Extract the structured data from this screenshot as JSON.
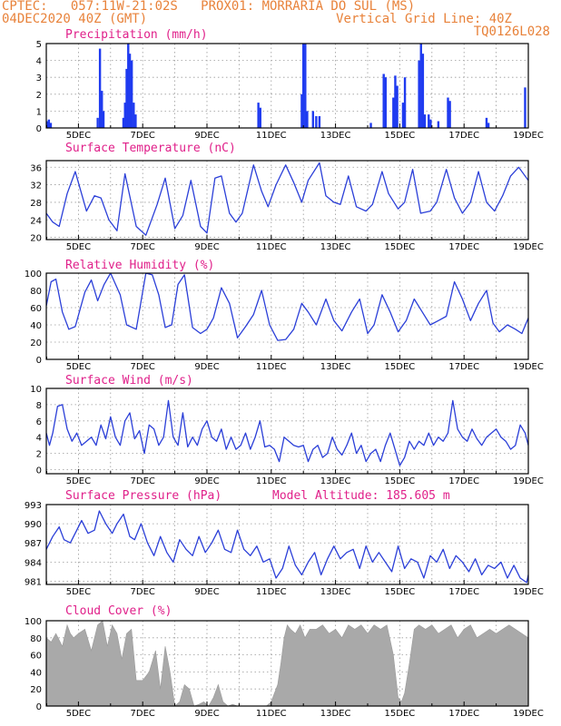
{
  "header": {
    "line1": "CPTEC:   057:11W-21:02S   PROX01: MORRARIA DO SUL (MS)",
    "line2": "04DEC2020 40Z (GMT)",
    "grid_note": "Vertical Grid Line: 40Z",
    "code": "TQ0126L028"
  },
  "colors": {
    "header": "#e8823a",
    "title": "#e0208a",
    "line": "#2b3fd8",
    "bar": "#1f3bf0",
    "cloud": "#a9a9a9"
  },
  "x_ticks": [
    "5DEC",
    "7DEC",
    "9DEC",
    "11DEC",
    "13DEC",
    "15DEC",
    "17DEC",
    "19DEC"
  ],
  "chart_data": [
    {
      "type": "bar",
      "title": "Precipitation  (mm/h)",
      "ylim": [
        0,
        5
      ],
      "yticks": [
        0,
        1,
        2,
        3,
        4,
        5
      ],
      "x_range": [
        4.0,
        19.0
      ],
      "values": [
        [
          4.02,
          0.4
        ],
        [
          4.08,
          0.5
        ],
        [
          4.14,
          0.3
        ],
        [
          5.6,
          0.6
        ],
        [
          5.67,
          4.7
        ],
        [
          5.73,
          2.2
        ],
        [
          5.78,
          1.0
        ],
        [
          6.4,
          0.6
        ],
        [
          6.45,
          1.5
        ],
        [
          6.5,
          3.5
        ],
        [
          6.55,
          5.0
        ],
        [
          6.6,
          4.4
        ],
        [
          6.66,
          4.0
        ],
        [
          6.72,
          1.5
        ],
        [
          6.78,
          0.8
        ],
        [
          10.6,
          1.5
        ],
        [
          10.66,
          1.2
        ],
        [
          11.95,
          2.0
        ],
        [
          12.0,
          5.0
        ],
        [
          12.06,
          5.0
        ],
        [
          12.12,
          1.0
        ],
        [
          12.3,
          1.0
        ],
        [
          12.4,
          0.7
        ],
        [
          12.5,
          0.7
        ],
        [
          14.1,
          0.3
        ],
        [
          14.5,
          3.2
        ],
        [
          14.56,
          3.0
        ],
        [
          14.8,
          1.8
        ],
        [
          14.86,
          3.1
        ],
        [
          14.92,
          2.5
        ],
        [
          15.1,
          1.5
        ],
        [
          15.16,
          3.0
        ],
        [
          15.6,
          4.0
        ],
        [
          15.66,
          5.0
        ],
        [
          15.72,
          4.4
        ],
        [
          15.78,
          0.8
        ],
        [
          15.9,
          0.8
        ],
        [
          15.96,
          0.5
        ],
        [
          16.2,
          0.4
        ],
        [
          16.5,
          1.8
        ],
        [
          16.56,
          1.6
        ],
        [
          17.7,
          0.6
        ],
        [
          17.76,
          0.3
        ],
        [
          18.9,
          2.4
        ]
      ]
    },
    {
      "type": "line",
      "title": "Surface Temperature  (nC)",
      "ylim": [
        19.5,
        37.5
      ],
      "yticks": [
        20,
        24,
        28,
        32,
        36
      ],
      "x_range": [
        4.0,
        19.0
      ],
      "x": [
        4.0,
        4.2,
        4.4,
        4.65,
        4.9,
        5.25,
        5.5,
        5.7,
        5.95,
        6.2,
        6.45,
        6.8,
        7.1,
        7.45,
        7.7,
        8.0,
        8.25,
        8.5,
        8.8,
        9.0,
        9.25,
        9.45,
        9.7,
        9.9,
        10.1,
        10.45,
        10.7,
        10.9,
        11.15,
        11.45,
        11.7,
        11.95,
        12.15,
        12.5,
        12.7,
        12.95,
        13.15,
        13.4,
        13.65,
        13.95,
        14.15,
        14.45,
        14.65,
        14.95,
        15.15,
        15.4,
        15.65,
        15.95,
        16.15,
        16.45,
        16.7,
        16.95,
        17.2,
        17.45,
        17.7,
        17.95,
        18.2,
        18.45,
        18.7,
        19.0
      ],
      "y": [
        25.5,
        23.5,
        22.5,
        30.0,
        35.0,
        26.0,
        29.5,
        29.0,
        24.0,
        21.5,
        34.5,
        22.5,
        20.5,
        27.5,
        33.5,
        22.0,
        25.0,
        33.0,
        22.5,
        21.0,
        33.5,
        34.0,
        25.5,
        23.5,
        25.5,
        36.5,
        30.5,
        27.0,
        32.0,
        36.5,
        32.5,
        28.0,
        33.0,
        37.0,
        29.5,
        28.0,
        27.5,
        34.0,
        27.0,
        26.0,
        27.5,
        35.0,
        30.0,
        26.5,
        28.0,
        35.5,
        25.5,
        26.0,
        28.0,
        35.5,
        29.0,
        25.5,
        28.0,
        35.0,
        28.0,
        26.0,
        29.5,
        34.0,
        36.0,
        33.0
      ]
    },
    {
      "type": "line",
      "title": "Relative Humidity  (%)",
      "ylim": [
        0,
        100
      ],
      "yticks": [
        0,
        20,
        40,
        60,
        80,
        100
      ],
      "x_range": [
        4.0,
        19.0
      ],
      "x": [
        4.0,
        4.15,
        4.3,
        4.5,
        4.7,
        4.9,
        5.2,
        5.4,
        5.6,
        5.8,
        6.0,
        6.3,
        6.5,
        6.8,
        7.1,
        7.3,
        7.5,
        7.7,
        7.9,
        8.1,
        8.3,
        8.55,
        8.8,
        9.0,
        9.2,
        9.45,
        9.7,
        9.95,
        10.2,
        10.45,
        10.7,
        10.95,
        11.2,
        11.45,
        11.7,
        11.95,
        12.15,
        12.4,
        12.7,
        12.95,
        13.2,
        13.5,
        13.75,
        14.0,
        14.2,
        14.45,
        14.7,
        14.95,
        15.2,
        15.45,
        15.7,
        15.95,
        16.2,
        16.45,
        16.7,
        16.95,
        17.2,
        17.45,
        17.7,
        17.9,
        18.1,
        18.35,
        18.6,
        18.8,
        19.0
      ],
      "y": [
        62,
        90,
        93,
        55,
        35,
        38,
        78,
        92,
        68,
        87,
        100,
        75,
        40,
        35,
        100,
        98,
        75,
        37,
        40,
        87,
        98,
        37,
        30,
        35,
        48,
        83,
        65,
        25,
        38,
        52,
        80,
        40,
        22,
        23,
        35,
        65,
        55,
        40,
        70,
        45,
        33,
        55,
        70,
        30,
        40,
        75,
        55,
        32,
        45,
        70,
        55,
        40,
        45,
        50,
        90,
        70,
        45,
        65,
        80,
        42,
        32,
        40,
        35,
        30,
        48
      ]
    },
    {
      "type": "line",
      "title": "Surface Wind  (m/s)",
      "ylim": [
        -0.5,
        10
      ],
      "yticks": [
        0,
        2,
        4,
        6,
        8,
        10
      ],
      "x_range": [
        4.0,
        19.0
      ],
      "x": [
        4.0,
        4.1,
        4.2,
        4.35,
        4.5,
        4.65,
        4.8,
        4.95,
        5.1,
        5.25,
        5.4,
        5.55,
        5.7,
        5.85,
        6.0,
        6.15,
        6.3,
        6.45,
        6.6,
        6.75,
        6.9,
        7.05,
        7.2,
        7.35,
        7.5,
        7.65,
        7.8,
        7.95,
        8.1,
        8.25,
        8.4,
        8.55,
        8.7,
        8.85,
        9.0,
        9.15,
        9.3,
        9.45,
        9.6,
        9.75,
        9.9,
        10.05,
        10.2,
        10.35,
        10.5,
        10.65,
        10.8,
        10.95,
        11.1,
        11.25,
        11.4,
        11.55,
        11.7,
        11.85,
        12.0,
        12.15,
        12.3,
        12.45,
        12.6,
        12.75,
        12.9,
        13.05,
        13.2,
        13.35,
        13.5,
        13.65,
        13.8,
        13.95,
        14.1,
        14.25,
        14.4,
        14.55,
        14.7,
        14.85,
        15.0,
        15.15,
        15.3,
        15.45,
        15.6,
        15.75,
        15.9,
        16.05,
        16.2,
        16.35,
        16.5,
        16.65,
        16.8,
        16.95,
        17.1,
        17.25,
        17.4,
        17.55,
        17.7,
        17.85,
        18.0,
        18.15,
        18.3,
        18.45,
        18.6,
        18.75,
        18.9,
        19.0
      ],
      "y": [
        4.5,
        3.0,
        4.5,
        7.8,
        8.0,
        5.0,
        3.5,
        4.5,
        3.0,
        3.5,
        4.0,
        3.0,
        5.5,
        3.8,
        6.5,
        4.0,
        3.0,
        6.0,
        7.0,
        3.8,
        4.8,
        2.0,
        5.5,
        5.0,
        3.0,
        4.0,
        8.5,
        4.0,
        3.0,
        7.0,
        2.8,
        4.0,
        3.0,
        5.0,
        6.0,
        4.0,
        3.5,
        5.0,
        2.5,
        4.0,
        2.5,
        3.0,
        4.5,
        2.5,
        4.0,
        6.0,
        2.8,
        3.0,
        2.5,
        1.0,
        4.0,
        3.5,
        3.0,
        2.8,
        3.0,
        1.0,
        2.5,
        3.0,
        1.5,
        2.0,
        4.0,
        2.5,
        1.8,
        3.0,
        4.5,
        2.0,
        3.0,
        1.0,
        2.0,
        2.5,
        1.0,
        3.0,
        4.5,
        2.5,
        0.5,
        1.5,
        3.5,
        2.5,
        3.5,
        3.0,
        4.5,
        3.0,
        4.0,
        3.5,
        4.5,
        8.5,
        5.0,
        4.0,
        3.5,
        5.0,
        3.8,
        3.0,
        4.0,
        4.5,
        5.0,
        4.0,
        3.5,
        2.5,
        3.0,
        5.5,
        4.5,
        3.0
      ]
    },
    {
      "type": "line",
      "title": "Surface Pressure  (hPa)",
      "subtitle": "Model Altitude: 185.605  m",
      "ylim": [
        980.5,
        993
      ],
      "yticks": [
        981,
        984,
        987,
        990,
        993
      ],
      "x_range": [
        4.0,
        19.0
      ],
      "x": [
        4.0,
        4.2,
        4.4,
        4.55,
        4.75,
        4.95,
        5.1,
        5.3,
        5.5,
        5.65,
        5.85,
        6.05,
        6.2,
        6.4,
        6.6,
        6.75,
        6.95,
        7.15,
        7.35,
        7.55,
        7.75,
        7.95,
        8.15,
        8.35,
        8.55,
        8.75,
        8.95,
        9.15,
        9.35,
        9.55,
        9.75,
        9.95,
        10.15,
        10.35,
        10.55,
        10.75,
        10.95,
        11.15,
        11.35,
        11.55,
        11.75,
        11.95,
        12.15,
        12.35,
        12.55,
        12.75,
        12.95,
        13.15,
        13.35,
        13.55,
        13.75,
        13.95,
        14.15,
        14.35,
        14.55,
        14.75,
        14.95,
        15.15,
        15.35,
        15.55,
        15.75,
        15.95,
        16.15,
        16.35,
        16.55,
        16.75,
        16.95,
        17.15,
        17.35,
        17.55,
        17.75,
        17.95,
        18.15,
        18.35,
        18.55,
        18.75,
        18.95,
        19.0
      ],
      "y": [
        986.0,
        988.0,
        989.5,
        987.5,
        987.0,
        989.0,
        990.5,
        988.5,
        989.0,
        992.0,
        990.0,
        988.5,
        990.0,
        991.5,
        988.0,
        987.5,
        990.0,
        987.0,
        985.0,
        988.0,
        985.5,
        984.0,
        987.5,
        986.0,
        985.0,
        988.0,
        985.5,
        987.0,
        989.0,
        986.0,
        985.5,
        989.0,
        986.0,
        985.0,
        986.5,
        984.0,
        984.5,
        981.5,
        983.0,
        986.5,
        983.5,
        982.0,
        984.0,
        985.5,
        982.0,
        984.5,
        986.5,
        984.5,
        985.5,
        986.0,
        983.0,
        986.5,
        984.0,
        985.5,
        984.0,
        982.5,
        986.5,
        983.0,
        984.5,
        984.0,
        981.5,
        985.0,
        984.0,
        986.0,
        983.0,
        985.0,
        984.0,
        982.5,
        984.5,
        982.0,
        983.5,
        983.0,
        984.0,
        981.5,
        983.5,
        981.5,
        980.8,
        982.0
      ]
    },
    {
      "type": "area",
      "title": "Cloud Cover  (%)",
      "ylim": [
        0,
        100
      ],
      "yticks": [
        0,
        20,
        40,
        60,
        80,
        100
      ],
      "x_range": [
        4.0,
        19.0
      ],
      "x": [
        4.0,
        4.15,
        4.3,
        4.5,
        4.65,
        4.75,
        4.85,
        5.0,
        5.2,
        5.4,
        5.6,
        5.75,
        5.9,
        6.05,
        6.2,
        6.35,
        6.5,
        6.65,
        6.8,
        7.0,
        7.2,
        7.4,
        7.55,
        7.7,
        7.85,
        8.0,
        8.15,
        8.3,
        8.45,
        8.6,
        8.75,
        8.9,
        9.05,
        9.2,
        9.35,
        9.5,
        9.65,
        9.8,
        9.95,
        10.1,
        10.25,
        10.4,
        10.55,
        10.7,
        10.85,
        11.0,
        11.1,
        11.2,
        11.3,
        11.4,
        11.5,
        11.6,
        11.75,
        11.9,
        12.05,
        12.2,
        12.4,
        12.6,
        12.8,
        13.0,
        13.2,
        13.4,
        13.6,
        13.8,
        14.0,
        14.2,
        14.4,
        14.6,
        14.8,
        14.95,
        15.05,
        15.15,
        15.3,
        15.45,
        15.6,
        15.8,
        16.0,
        16.2,
        16.4,
        16.6,
        16.8,
        17.0,
        17.2,
        17.4,
        17.6,
        17.8,
        18.0,
        18.2,
        18.4,
        18.6,
        18.8,
        19.0
      ],
      "y": [
        80,
        75,
        85,
        70,
        95,
        85,
        80,
        85,
        90,
        65,
        95,
        100,
        70,
        95,
        85,
        55,
        85,
        90,
        30,
        30,
        40,
        65,
        20,
        70,
        40,
        0,
        5,
        25,
        20,
        0,
        2,
        5,
        0,
        10,
        25,
        5,
        0,
        2,
        0,
        0,
        0,
        0,
        0,
        0,
        0,
        5,
        15,
        25,
        50,
        80,
        95,
        90,
        85,
        95,
        80,
        90,
        90,
        95,
        85,
        90,
        80,
        95,
        90,
        95,
        85,
        95,
        90,
        95,
        60,
        10,
        5,
        15,
        50,
        90,
        95,
        90,
        95,
        85,
        90,
        95,
        80,
        90,
        95,
        80,
        85,
        90,
        85,
        90,
        95,
        90,
        85,
        80
      ]
    }
  ]
}
